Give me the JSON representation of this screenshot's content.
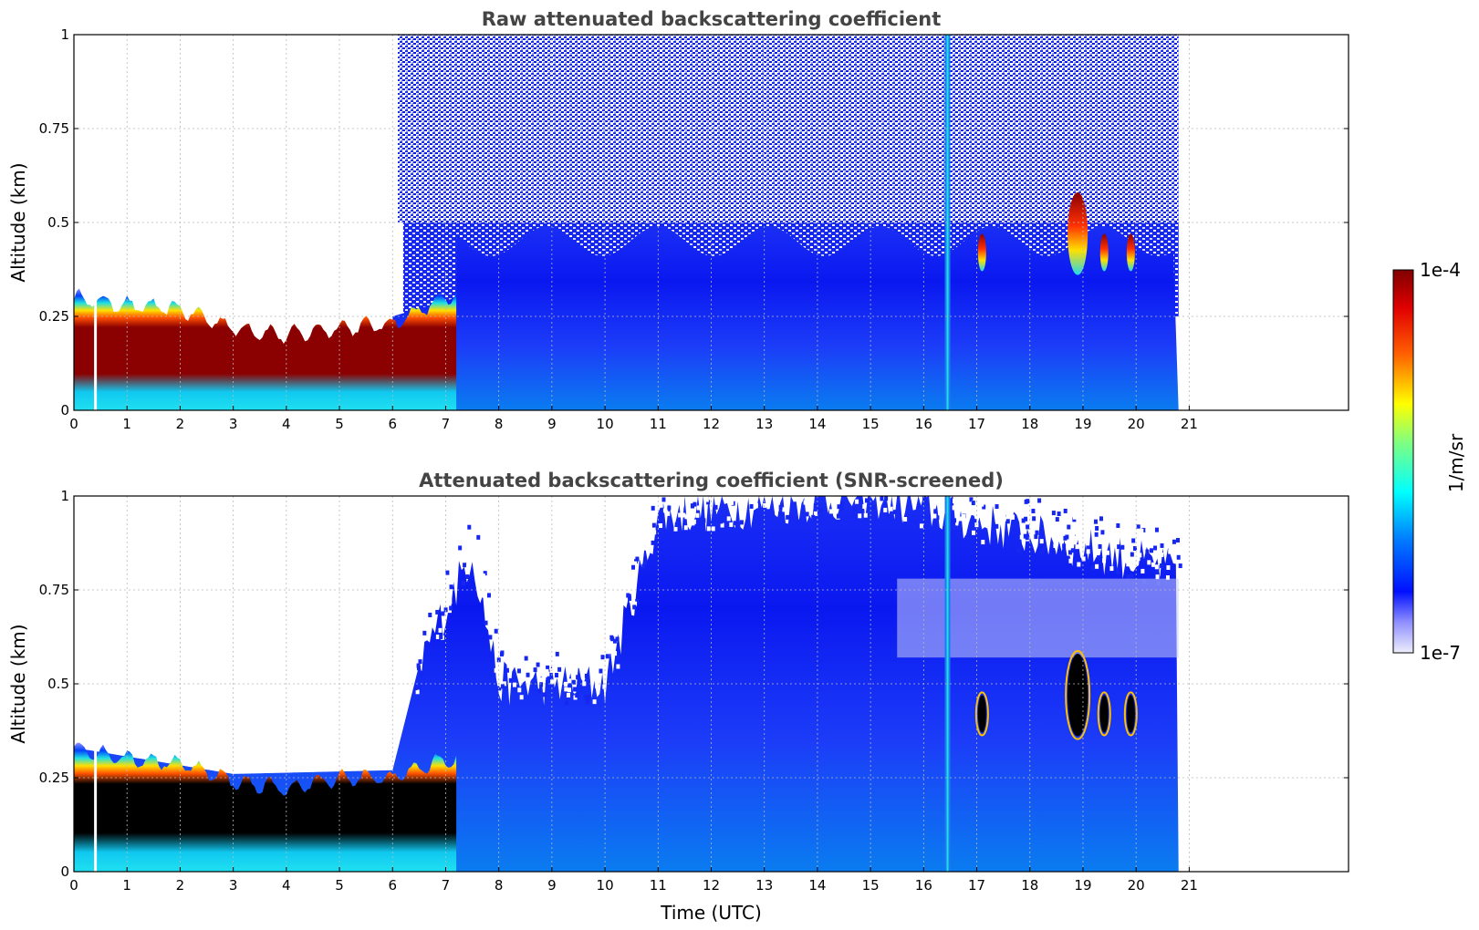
{
  "chart_data": [
    {
      "type": "heatmap",
      "title": "Raw attenuated backscattering coefficient",
      "xlabel": "",
      "ylabel": "Altitude (km)",
      "xlim": [
        0,
        24
      ],
      "ylim": [
        0,
        1
      ],
      "xticks": [
        "0",
        "1",
        "2",
        "3",
        "4",
        "5",
        "6",
        "7",
        "8",
        "9",
        "10",
        "11",
        "12",
        "13",
        "14",
        "15",
        "16",
        "17",
        "18",
        "19",
        "20",
        "21"
      ],
      "yticks": [
        "0",
        "0.25",
        "0.5",
        "0.75",
        "1"
      ],
      "grid": true,
      "data_end_hour": 20.8,
      "features": {
        "surface_layer_top_km": [
          {
            "t": 0,
            "v": 0.3
          },
          {
            "t": 1,
            "v": 0.28
          },
          {
            "t": 2,
            "v": 0.27
          },
          {
            "t": 3,
            "v": 0.22
          },
          {
            "t": 4,
            "v": 0.2
          },
          {
            "t": 5,
            "v": 0.22
          },
          {
            "t": 6,
            "v": 0.23
          },
          {
            "t": 7,
            "v": 0.3
          }
        ],
        "vertical_stripe_hour": 16.45,
        "cloud_events_hours": [
          17.1,
          18.9,
          19.4,
          19.9
        ]
      }
    },
    {
      "type": "heatmap",
      "title": "Attenuated backscattering coefficient (SNR-screened)",
      "xlabel": "Time (UTC)",
      "ylabel": "Altitude (km)",
      "xlim": [
        0,
        24
      ],
      "ylim": [
        0,
        1
      ],
      "xticks": [
        "0",
        "1",
        "2",
        "3",
        "4",
        "5",
        "6",
        "7",
        "8",
        "9",
        "10",
        "11",
        "12",
        "13",
        "14",
        "15",
        "16",
        "17",
        "18",
        "19",
        "20",
        "21"
      ],
      "yticks": [
        "0",
        "0.25",
        "0.5",
        "0.75",
        "1"
      ],
      "grid": true,
      "data_end_hour": 20.8,
      "features": {
        "signal_top_km": [
          {
            "t": 0,
            "v": 0.33
          },
          {
            "t": 3,
            "v": 0.26
          },
          {
            "t": 6,
            "v": 0.27
          },
          {
            "t": 6.5,
            "v": 0.55
          },
          {
            "t": 7.5,
            "v": 0.85
          },
          {
            "t": 8,
            "v": 0.5
          },
          {
            "t": 10,
            "v": 0.5
          },
          {
            "t": 10.8,
            "v": 0.85
          },
          {
            "t": 11,
            "v": 0.95
          },
          {
            "t": 15,
            "v": 1.0
          },
          {
            "t": 20.8,
            "v": 0.8
          }
        ],
        "vertical_stripe_hour": 16.45,
        "cloud_events_hours": [
          17.1,
          18.9,
          19.4,
          19.9
        ]
      }
    }
  ],
  "colorbar": {
    "label": "1/m/sr",
    "max_label": "1e-4",
    "min_label": "1e-7",
    "colormap": "jet",
    "scale": "log"
  },
  "colors": {
    "low": "#e8e8fa",
    "blue": "#0a1cf5",
    "cyan": "#21e6f0",
    "yellow": "#f5f01f",
    "red": "#e82a10",
    "darkred": "#8b0000",
    "saturated_snr": "#000000"
  }
}
